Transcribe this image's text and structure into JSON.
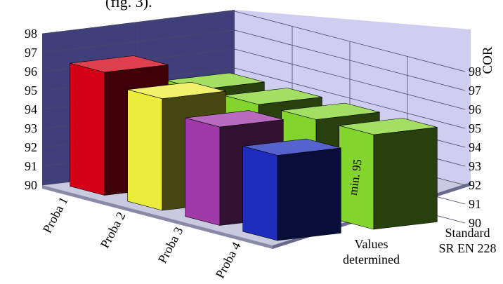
{
  "chart_data": {
    "type": "bar",
    "subtype": "3d-column",
    "title": "",
    "caption_fragment": "(fig. 3).",
    "ylabel": "COR",
    "ylim": [
      90,
      98
    ],
    "yticks": [
      90,
      91,
      92,
      93,
      94,
      95,
      96,
      97,
      98
    ],
    "grid": true,
    "categories": [
      "Proba 1",
      "Proba 2",
      "Proba 3",
      "Proba 4"
    ],
    "series": [
      {
        "name": "Values determined",
        "values": [
          96.5,
          95.9,
          95.2,
          94.5
        ],
        "colors": [
          "#d40016",
          "#ecec3c",
          "#a03aa8",
          "#1e2dbe"
        ]
      },
      {
        "name": "Standard SR EN 228",
        "values": [
          95,
          95,
          95,
          95
        ],
        "colors": [
          "#84d42e",
          "#84d42e",
          "#84d42e",
          "#84d42e"
        ],
        "data_labels": [
          "",
          "",
          "min. 95",
          "min. 95"
        ]
      }
    ],
    "series_label_lines": [
      [
        "Values",
        "determined"
      ],
      [
        "Standard",
        "SR EN 228"
      ]
    ]
  }
}
